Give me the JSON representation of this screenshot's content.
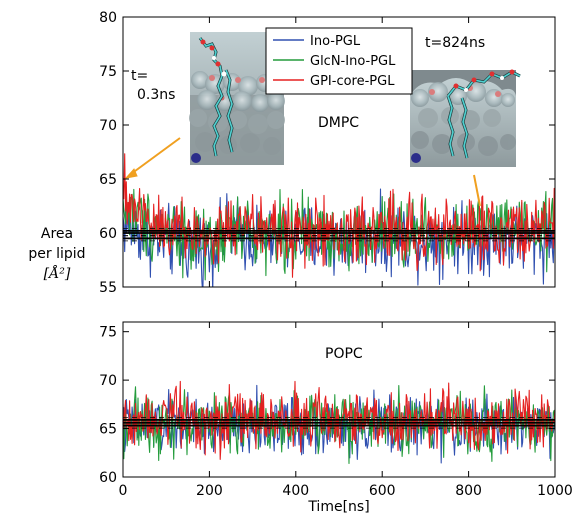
{
  "figure": {
    "ylabel_lines": [
      "Area",
      "per lipid"
    ],
    "ylabel_unit": "[Å²]",
    "xlabel": "Time[ns]",
    "colors": {
      "Ino-PGL": "#3050b0",
      "GlcN-Ino-PGL": "#249c3c",
      "GPI-core-PGL": "#e52020",
      "annotation_arrow": "#f0a020"
    }
  },
  "top_panel": {
    "membrane_label": "DMPC",
    "snapshot_left_label_line1": "t=",
    "snapshot_left_label_line2": "0.3ns",
    "snapshot_right_label": "t=824ns",
    "legend": [
      "Ino-PGL",
      "GlcN-Ino-PGL",
      "GPI-core-PGL"
    ]
  },
  "bottom_panel": {
    "membrane_label": "POPC"
  },
  "chart_data": [
    {
      "type": "line",
      "panel": "DMPC",
      "xlabel": "Time[ns]",
      "ylabel": "Area per lipid [Å²]",
      "xlim": [
        0,
        1000
      ],
      "ylim": [
        55,
        80
      ],
      "xticks": [
        0,
        200,
        400,
        600,
        800,
        1000
      ],
      "yticks": [
        55,
        60,
        65,
        70,
        75,
        80
      ],
      "legend": "top-center",
      "x": [
        0,
        50,
        100,
        150,
        200,
        250,
        300,
        350,
        400,
        450,
        500,
        550,
        600,
        650,
        700,
        750,
        800,
        850,
        900,
        950,
        1000
      ],
      "series": [
        {
          "name": "Ino-PGL",
          "mean": 59.5,
          "values": [
            61.0,
            59.8,
            59.2,
            58.8,
            58.5,
            60.2,
            59.6,
            59.3,
            59.6,
            59.4,
            59.2,
            59.5,
            59.4,
            59.7,
            59.3,
            59.6,
            59.4,
            59.6,
            59.5,
            59.4,
            59.6
          ]
        },
        {
          "name": "GlcN-Ino-PGL",
          "mean": 60.0,
          "values": [
            62.5,
            61.0,
            60.6,
            59.8,
            58.0,
            60.4,
            60.0,
            60.3,
            59.6,
            60.2,
            59.8,
            59.6,
            60.2,
            59.9,
            60.3,
            59.8,
            60.1,
            60.6,
            60.2,
            60.0,
            60.4
          ]
        },
        {
          "name": "GPI-core-PGL",
          "mean": 60.2,
          "values": [
            63.5,
            61.5,
            61.0,
            60.0,
            59.6,
            60.6,
            60.4,
            60.3,
            60.2,
            60.0,
            59.7,
            60.3,
            60.2,
            60.4,
            60.0,
            60.3,
            60.1,
            60.5,
            60.2,
            60.4,
            60.3
          ]
        }
      ]
    },
    {
      "type": "line",
      "panel": "POPC",
      "xlabel": "Time[ns]",
      "ylabel": "Area per lipid [Å²]",
      "xlim": [
        0,
        1000
      ],
      "ylim": [
        60,
        76
      ],
      "xticks": [
        0,
        200,
        400,
        600,
        800,
        1000
      ],
      "yticks": [
        60,
        65,
        70,
        75
      ],
      "x": [
        0,
        50,
        100,
        150,
        200,
        250,
        300,
        350,
        400,
        450,
        500,
        550,
        600,
        650,
        700,
        750,
        800,
        850,
        900,
        950,
        1000
      ],
      "series": [
        {
          "name": "Ino-PGL",
          "mean": 65.3,
          "values": [
            65.0,
            65.4,
            65.2,
            65.5,
            65.1,
            64.6,
            65.3,
            65.6,
            65.2,
            65.4,
            65.0,
            65.3,
            65.5,
            65.2,
            65.3,
            65.4,
            65.1,
            65.3,
            65.2,
            65.4,
            65.3
          ]
        },
        {
          "name": "GlcN-Ino-PGL",
          "mean": 65.6,
          "values": [
            65.8,
            65.6,
            65.9,
            65.4,
            65.7,
            65.8,
            65.5,
            65.6,
            65.9,
            65.5,
            65.7,
            65.6,
            65.8,
            65.4,
            65.9,
            65.6,
            65.7,
            65.5,
            65.6,
            65.8,
            65.6
          ]
        },
        {
          "name": "GPI-core-PGL",
          "mean": 65.9,
          "values": [
            66.0,
            66.2,
            66.8,
            66.3,
            65.9,
            66.0,
            66.1,
            65.8,
            66.0,
            65.9,
            66.1,
            65.7,
            66.0,
            65.9,
            65.8,
            66.0,
            65.9,
            66.1,
            65.8,
            65.9,
            66.0
          ]
        }
      ]
    }
  ]
}
